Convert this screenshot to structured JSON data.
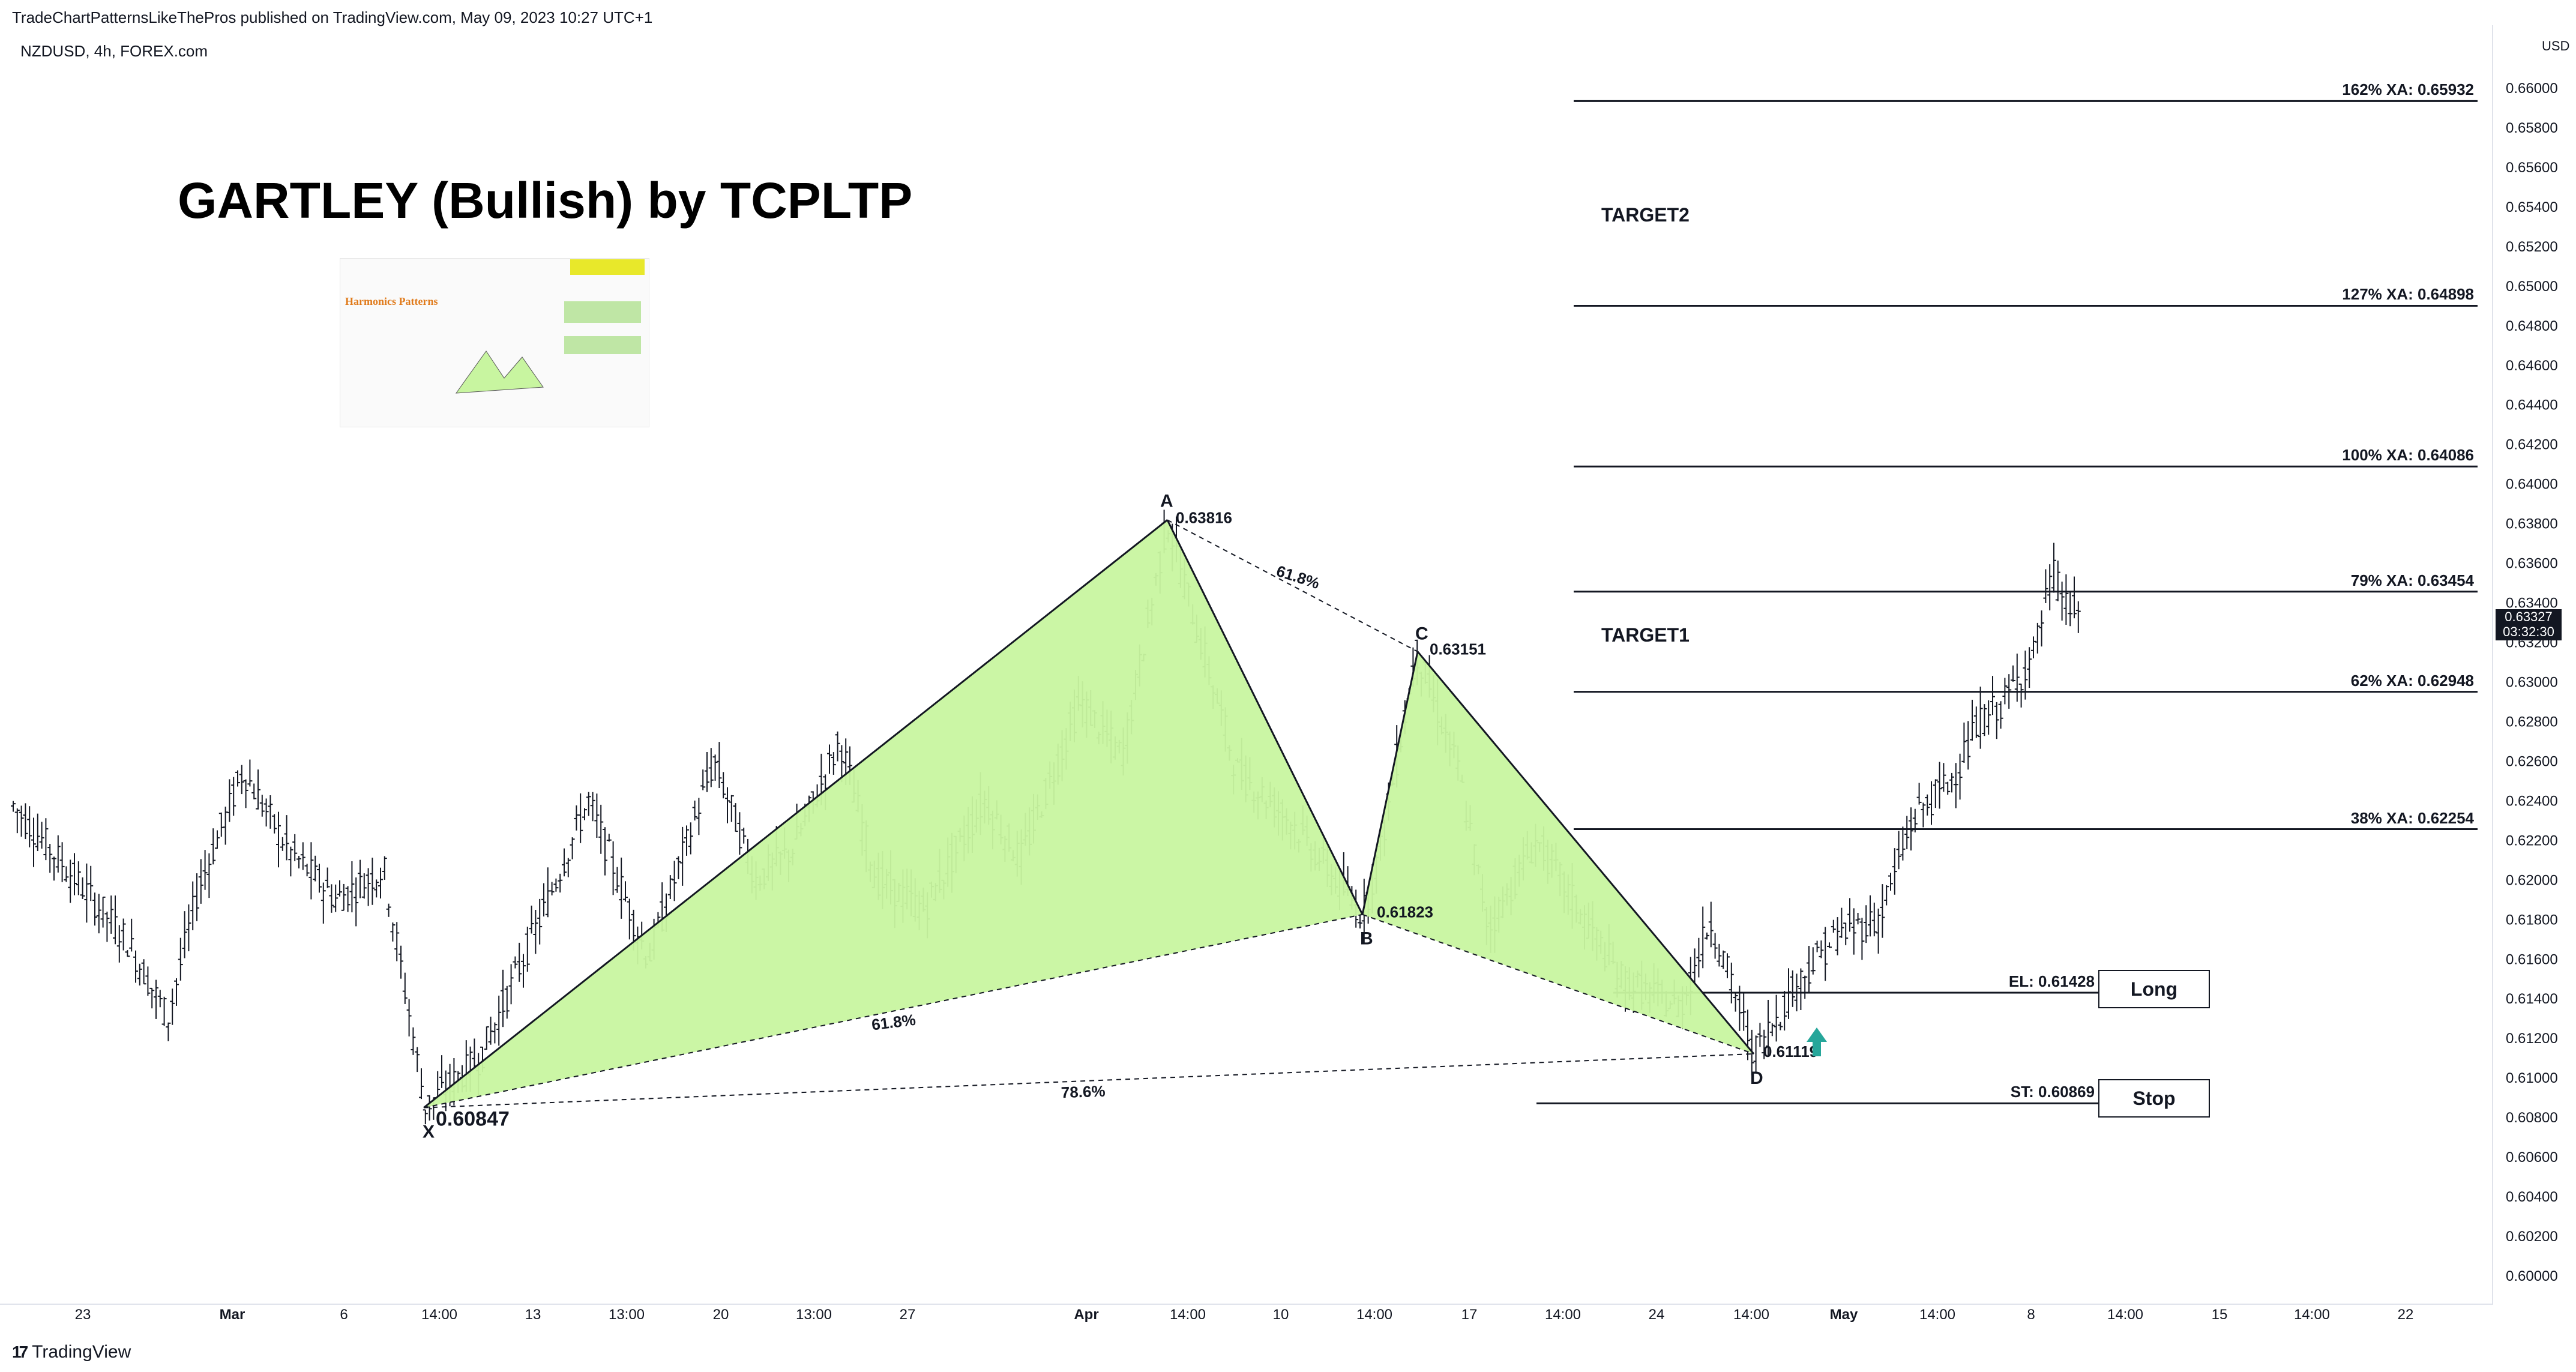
{
  "header": {
    "published_line": "TradeChartPatternsLikeThePros published on TradingView.com, May 09, 2023 10:27 UTC+1",
    "symbol_line": "NZDUSD, 4h, FOREX.com"
  },
  "footer": {
    "logo_mark": "17",
    "logo_text": "TradingView"
  },
  "price_axis": {
    "currency": "USD",
    "ticks": [
      "0.66000",
      "0.65800",
      "0.65600",
      "0.65400",
      "0.65200",
      "0.65000",
      "0.64800",
      "0.64600",
      "0.64400",
      "0.64200",
      "0.64000",
      "0.63800",
      "0.63600",
      "0.63400",
      "0.63200",
      "0.63000",
      "0.62800",
      "0.62600",
      "0.62400",
      "0.62200",
      "0.62000",
      "0.61800",
      "0.61600",
      "0.61400",
      "0.61200",
      "0.61000",
      "0.60800",
      "0.60600",
      "0.60400",
      "0.60200",
      "0.60000"
    ],
    "last_price": "0.63327",
    "countdown": "03:32:30"
  },
  "time_axis": {
    "ticks": [
      "23",
      "Mar",
      "6",
      "14:00",
      "13",
      "13:00",
      "20",
      "13:00",
      "27",
      "Apr",
      "14:00",
      "10",
      "14:00",
      "17",
      "14:00",
      "24",
      "14:00",
      "May",
      "14:00",
      "8",
      "14:00",
      "15",
      "14:00",
      "22"
    ]
  },
  "annotations": {
    "title": "GARTLEY (Bullish) by TCPLTP",
    "target1": "TARGET1",
    "target2": "TARGET2",
    "thumbnail_heading": "Harmonics Patterns",
    "fib_levels": [
      {
        "label": "162% XA: 0.65932",
        "price": 0.65932
      },
      {
        "label": "127% XA: 0.64898",
        "price": 0.64898
      },
      {
        "label": "100% XA: 0.64086",
        "price": 0.64086
      },
      {
        "label": "79% XA: 0.63454",
        "price": 0.63454
      },
      {
        "label": "62% XA: 0.62948",
        "price": 0.62948
      },
      {
        "label": "38% XA: 0.62254",
        "price": 0.62254
      }
    ],
    "entry": {
      "label": "EL: 0.61428",
      "price": 0.61428,
      "button": "Long"
    },
    "stop": {
      "label": "ST: 0.60869",
      "price": 0.60869,
      "button": "Stop"
    },
    "ratio_xb": "61.8%",
    "ratio_ac": "61.8%",
    "ratio_xd": "78.6%"
  },
  "chart_data": {
    "type": "candlestick",
    "symbol": "NZDUSD",
    "timeframe": "4h",
    "pattern": "Gartley (Bullish)",
    "pattern_points": [
      {
        "name": "X",
        "price": 0.60847,
        "label": "0.60847"
      },
      {
        "name": "A",
        "price": 0.63816,
        "label": "0.63816"
      },
      {
        "name": "B",
        "price": 0.61823,
        "label": "0.61823"
      },
      {
        "name": "C",
        "price": 0.63151,
        "label": "0.63151"
      },
      {
        "name": "D",
        "price": 0.61119,
        "label": "0.61119"
      }
    ],
    "ylim": [
      0.5995,
      0.6612
    ],
    "grid": false,
    "colors": {
      "fill": "#c8f5a0",
      "line": "#131722",
      "arrow": "#26a69a"
    }
  }
}
